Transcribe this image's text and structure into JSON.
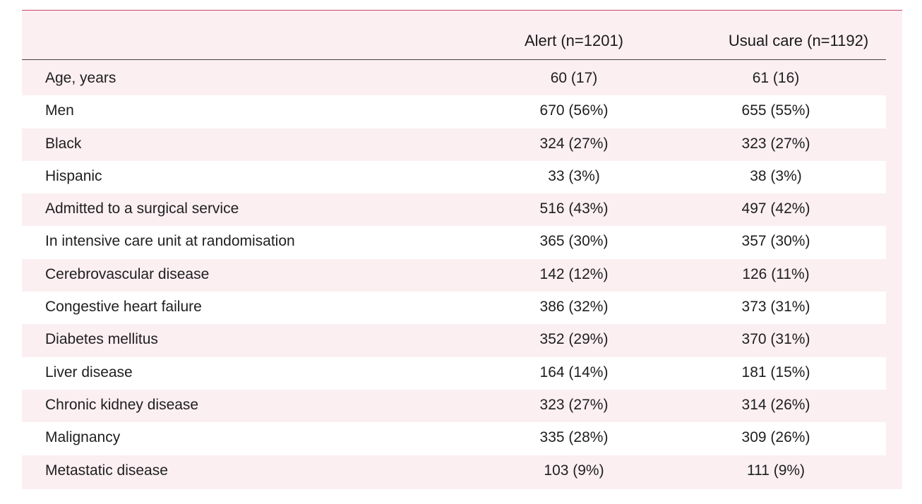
{
  "table": {
    "columns": {
      "alert": "Alert (n=1201)",
      "usual": "Usual care (n=1192)"
    },
    "rows": [
      {
        "label": "Age, years",
        "alert": "60 (17)",
        "usual": "61 (16)"
      },
      {
        "label": "Men",
        "alert": "670 (56%)",
        "usual": "655 (55%)"
      },
      {
        "label": "Black",
        "alert": "324 (27%)",
        "usual": "323 (27%)"
      },
      {
        "label": "Hispanic",
        "alert": "33 (3%)",
        "usual": "38 (3%)"
      },
      {
        "label": "Admitted to a surgical service",
        "alert": "516 (43%)",
        "usual": "497 (42%)"
      },
      {
        "label": "In intensive care unit at randomisation",
        "alert": "365 (30%)",
        "usual": "357 (30%)"
      },
      {
        "label": "Cerebrovascular disease",
        "alert": "142 (12%)",
        "usual": "126 (11%)"
      },
      {
        "label": "Congestive heart failure",
        "alert": "386 (32%)",
        "usual": "373 (31%)"
      },
      {
        "label": "Diabetes mellitus",
        "alert": "352 (29%)",
        "usual": "370 (31%)"
      },
      {
        "label": "Liver disease",
        "alert": "164 (14%)",
        "usual": "181 (15%)"
      },
      {
        "label": "Chronic kidney disease",
        "alert": "323 (27%)",
        "usual": "314 (26%)"
      },
      {
        "label": "Malignancy",
        "alert": "335 (28%)",
        "usual": "309 (26%)"
      },
      {
        "label": "Metastatic disease",
        "alert": "103 (9%)",
        "usual": "111 (9%)"
      }
    ]
  }
}
